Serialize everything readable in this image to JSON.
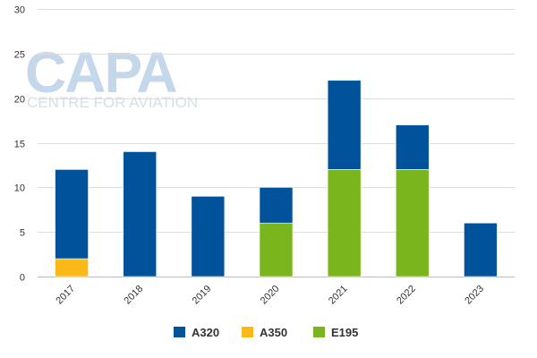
{
  "watermark": {
    "main": "CAPA",
    "sub": "CENTRE FOR AVIATION"
  },
  "chart_data": {
    "type": "bar",
    "stacked": true,
    "title": "",
    "xlabel": "",
    "ylabel": "",
    "categories": [
      "2017",
      "2018",
      "2019",
      "2020",
      "2021",
      "2022",
      "2023"
    ],
    "series": [
      {
        "name": "E195",
        "color": "#7ab51d",
        "values": [
          0,
          0,
          0,
          6,
          12,
          12,
          0
        ]
      },
      {
        "name": "A350",
        "color": "#fbb918",
        "values": [
          2,
          0,
          0,
          0,
          0,
          0,
          0
        ]
      },
      {
        "name": "A320",
        "color": "#00529b",
        "values": [
          10,
          14,
          9,
          4,
          10,
          5,
          6
        ]
      }
    ],
    "legend_order": [
      "A320",
      "A350",
      "E195"
    ],
    "ylim": [
      0,
      30
    ],
    "yticks": [
      0,
      5,
      10,
      15,
      20,
      25,
      30
    ],
    "grid": true,
    "legend_position": "bottom"
  }
}
